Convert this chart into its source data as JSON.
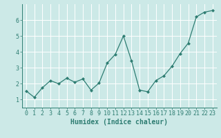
{
  "x": [
    0,
    1,
    2,
    3,
    4,
    5,
    6,
    7,
    8,
    9,
    10,
    11,
    12,
    13,
    14,
    15,
    16,
    17,
    18,
    19,
    20,
    21,
    22,
    23
  ],
  "y": [
    1.55,
    1.15,
    1.75,
    2.2,
    2.0,
    2.35,
    2.1,
    2.3,
    1.6,
    2.05,
    3.3,
    3.85,
    5.0,
    3.45,
    1.6,
    1.5,
    2.2,
    2.5,
    3.1,
    3.9,
    4.55,
    6.2,
    6.5,
    6.6
  ],
  "line_color": "#2e7d72",
  "marker": "D",
  "marker_size": 2.0,
  "bg_color": "#cce9e7",
  "grid_color": "#ffffff",
  "xlabel": "Humidex (Indice chaleur)",
  "xlabel_fontsize": 7,
  "tick_fontsize": 6,
  "ylabel_ticks": [
    1,
    2,
    3,
    4,
    5,
    6
  ],
  "xlim": [
    -0.5,
    23.5
  ],
  "ylim": [
    0.5,
    7.0
  ]
}
